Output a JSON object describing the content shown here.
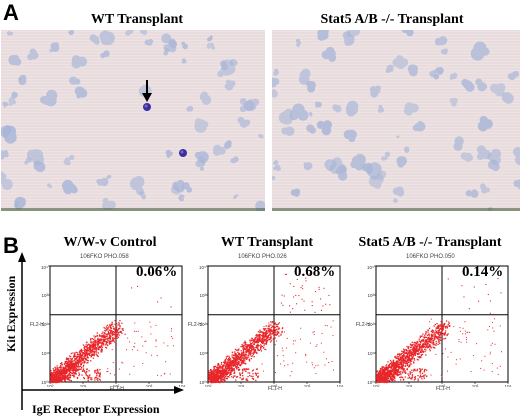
{
  "panel_a": {
    "letter": "A",
    "images": [
      {
        "title": "WT Transplant"
      },
      {
        "title": "Stat5 A/B -/- Transplant"
      }
    ]
  },
  "panel_b": {
    "letter": "B",
    "plots": [
      {
        "title": "W/W-v Control",
        "file_label": "106FKO PHO.058",
        "percent": "0.06%",
        "x_axis_label": "FL1-H",
        "y_axis_label": "FL2-H"
      },
      {
        "title": "WT Transplant",
        "file_label": "106FKO PHO.026",
        "percent": "0.68%",
        "x_axis_label": "FL1-H",
        "y_axis_label": "FL2-H"
      },
      {
        "title": "Stat5 A/B -/- Transplant",
        "file_label": "106FKO PHO.050",
        "percent": "0.14%",
        "x_axis_label": "FL1-H",
        "y_axis_label": "FL2-H"
      }
    ],
    "tick_labels": [
      "10⁰",
      "10¹",
      "10²",
      "10³",
      "10⁴"
    ],
    "y_axis_title": "Kit Expression",
    "x_axis_title": "IgE Receptor Expression"
  },
  "colors": {
    "dots": "#e8262a",
    "cell": "#3a2fa0",
    "colony": "#a9b6d8",
    "background": "#ede3e3"
  }
}
